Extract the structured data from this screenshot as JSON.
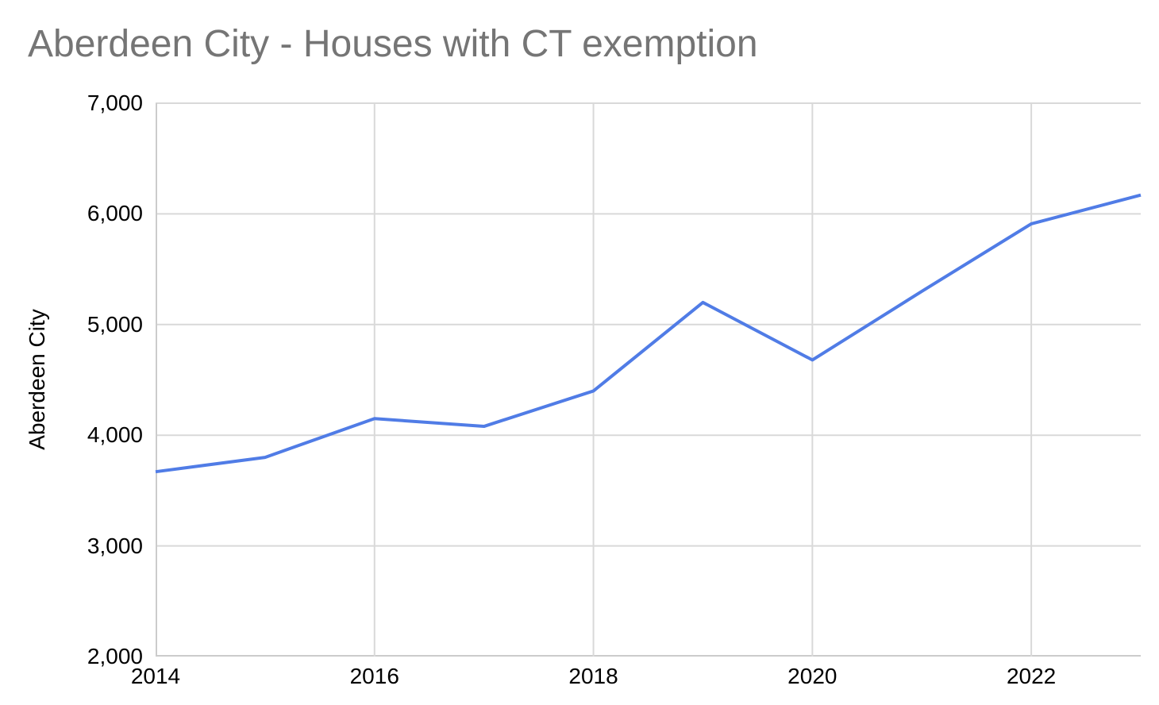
{
  "title": "Aberdeen City - Houses with CT exemption",
  "colors": {
    "line": "#507ce6",
    "grid": "#d9d9d9",
    "axis": "#cccccc",
    "title_text": "#757575",
    "tick_text": "#000000",
    "background": "#ffffff"
  },
  "chart_data": {
    "type": "line",
    "title": "Aberdeen City - Houses with CT exemption",
    "xlabel": "",
    "ylabel": "Aberdeen City",
    "x": [
      2014,
      2015,
      2016,
      2017,
      2018,
      2019,
      2020,
      2021,
      2022,
      2023
    ],
    "series": [
      {
        "name": "Aberdeen City",
        "values": [
          3670,
          3800,
          4150,
          4080,
          4400,
          5200,
          4680,
          5300,
          5910,
          6170
        ]
      }
    ],
    "xlim": [
      2014,
      2023
    ],
    "ylim": [
      2000,
      7000
    ],
    "ytick_values": [
      2000,
      3000,
      4000,
      5000,
      6000,
      7000
    ],
    "ytick_labels": [
      "2,000",
      "3,000",
      "4,000",
      "5,000",
      "6,000",
      "7,000"
    ],
    "xtick_values": [
      2014,
      2016,
      2018,
      2020,
      2022
    ],
    "xtick_labels": [
      "2014",
      "2016",
      "2018",
      "2020",
      "2022"
    ],
    "grid": true,
    "legend": false
  }
}
